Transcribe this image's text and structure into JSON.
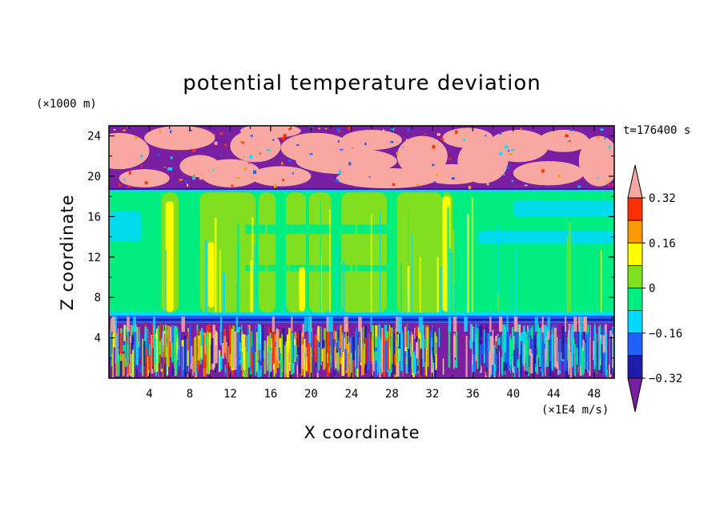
{
  "chart_data": {
    "type": "heatmap",
    "title": "potential temperature deviation",
    "xlabel": "X coordinate",
    "ylabel": "Z coordinate",
    "x_unit": "(×1E4 m/s)",
    "y_unit": "(×1000 m)",
    "time_label": "t=176400 s",
    "xlim": [
      0,
      50
    ],
    "ylim": [
      0,
      25
    ],
    "x_ticks": [
      "4",
      "8",
      "12",
      "16",
      "20",
      "24",
      "28",
      "32",
      "36",
      "40",
      "44",
      "48"
    ],
    "y_ticks": [
      "4",
      "8",
      "12",
      "16",
      "20",
      "24"
    ],
    "colorbar": {
      "levels": [
        -0.4,
        -0.32,
        -0.24,
        -0.16,
        -0.08,
        0,
        0.08,
        0.16,
        0.24,
        0.32,
        0.4
      ],
      "tick_labels": [
        "0.32",
        "0.16",
        "0",
        "−0.16",
        "−0.32"
      ],
      "colors": [
        "#7a1fa2",
        "#1d1da8",
        "#2060ff",
        "#00d8ff",
        "#00ee80",
        "#80e020",
        "#ffff00",
        "#ff9a00",
        "#ff3000",
        "#f8a8a0"
      ],
      "extend": "both"
    },
    "bands": [
      {
        "zmin": 0,
        "zmax": 5.5,
        "description": "mixed values −0.4 to 0.4 (noisy boundary layer)"
      },
      {
        "zmin": 5.5,
        "zmax": 6.2,
        "value": -0.3
      },
      {
        "zmin": 6.2,
        "zmax": 18.8,
        "value": 0.0
      },
      {
        "zmin": 18.8,
        "zmax": 25,
        "description": "alternating −0.4 and +0.4 patches"
      }
    ]
  },
  "colors": {
    "purple": "#7a1fa2",
    "navy": "#1d1da8",
    "blue": "#2060ff",
    "cyan": "#00d8ff",
    "green": "#00ee80",
    "lime": "#80e020",
    "yellow": "#ffff00",
    "orange": "#ff9a00",
    "red": "#ff3000",
    "pink": "#f8a8a0"
  }
}
